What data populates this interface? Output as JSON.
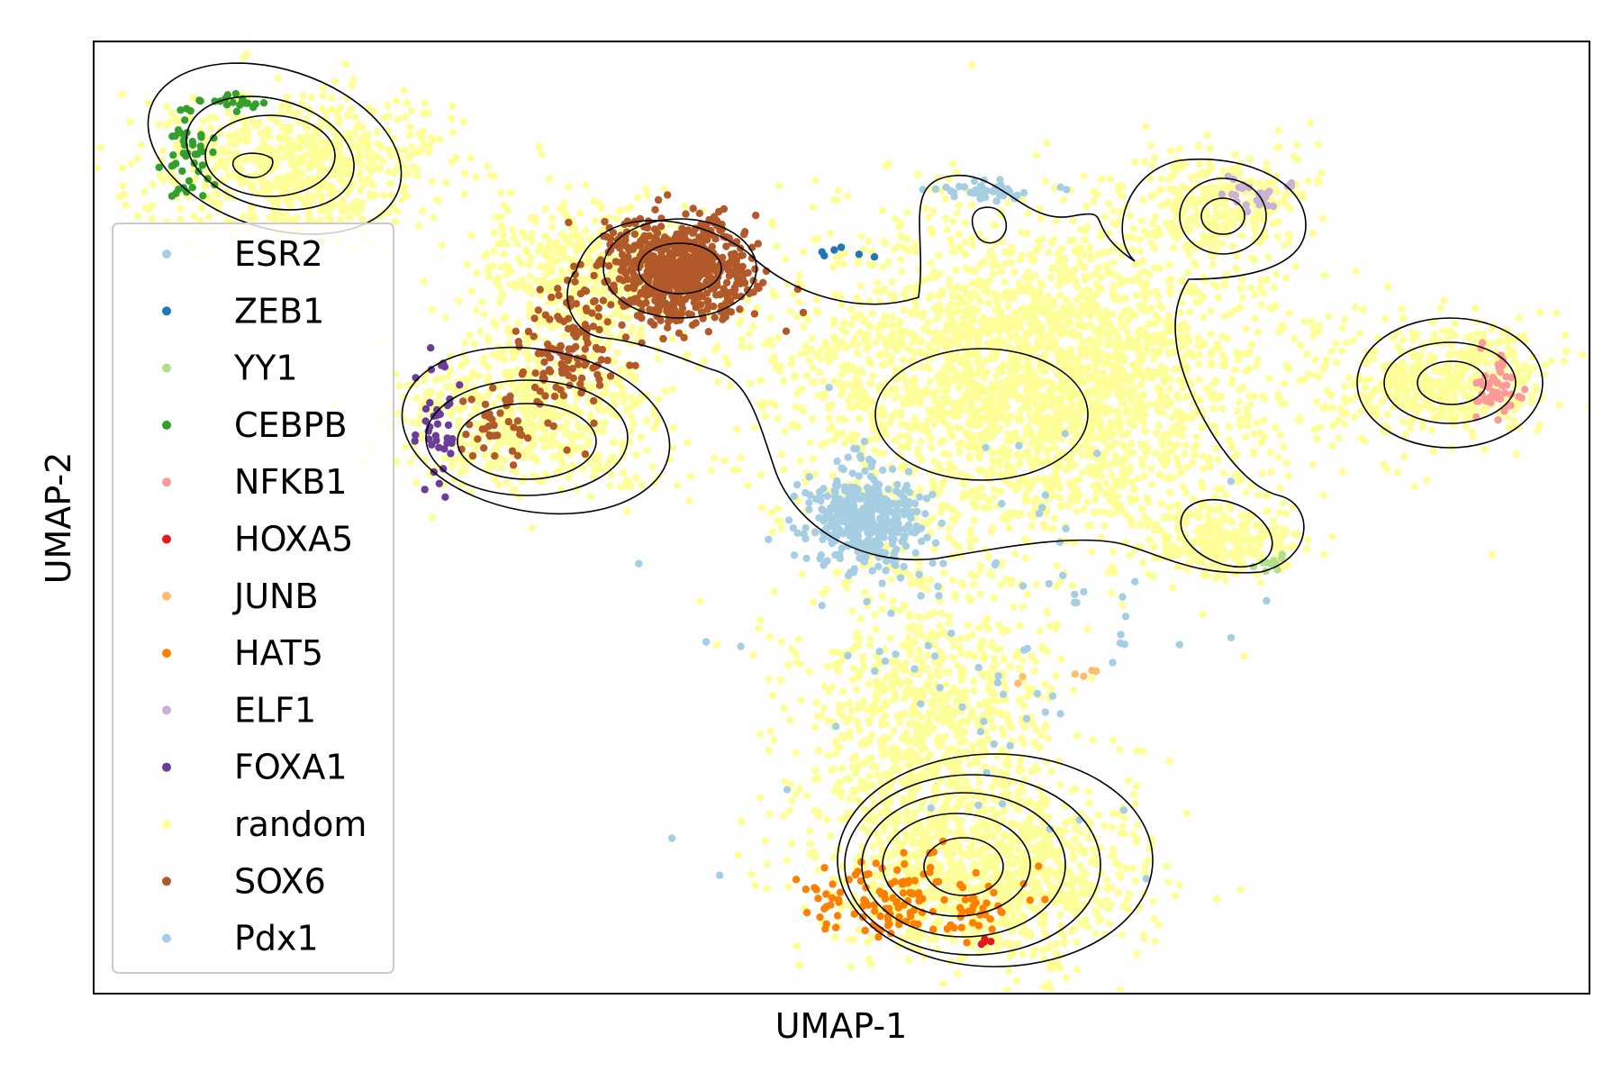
{
  "chart_data": {
    "type": "scatter",
    "xlabel": "UMAP-1",
    "ylabel": "UMAP-2",
    "xticks": "none",
    "yticks": "none",
    "grid": false,
    "legend_position": "left",
    "contours": "density contour lines (black)",
    "series": [
      {
        "name": "ESR2",
        "color": "#a6cee3",
        "clusters": [
          {
            "cx": 1100,
            "cy": 210,
            "rx": 55,
            "ry": 12,
            "n": 40
          }
        ]
      },
      {
        "name": "ZEB1",
        "color": "#1f78b4",
        "clusters": [
          {
            "cx": 930,
            "cy": 280,
            "rx": 40,
            "ry": 8,
            "n": 6
          }
        ]
      },
      {
        "name": "YY1",
        "color": "#b2df8a",
        "clusters": [
          {
            "cx": 1410,
            "cy": 625,
            "rx": 25,
            "ry": 12,
            "n": 10
          }
        ]
      },
      {
        "name": "CEBPB",
        "color": "#33a02c",
        "clusters": [
          {
            "cx": 210,
            "cy": 170,
            "rx": 30,
            "ry": 50,
            "n": 45
          },
          {
            "cx": 260,
            "cy": 115,
            "rx": 40,
            "ry": 10,
            "n": 20
          }
        ]
      },
      {
        "name": "NFKB1",
        "color": "#fb9a99",
        "clusters": [
          {
            "cx": 1660,
            "cy": 430,
            "rx": 30,
            "ry": 40,
            "n": 45
          }
        ]
      },
      {
        "name": "HOXA5",
        "color": "#e31a1c",
        "clusters": [
          {
            "cx": 1100,
            "cy": 1045,
            "rx": 40,
            "ry": 5,
            "n": 4
          }
        ]
      },
      {
        "name": "JUNB",
        "color": "#fdbf6f",
        "clusters": [
          {
            "cx": 1190,
            "cy": 750,
            "rx": 60,
            "ry": 30,
            "n": 6
          }
        ]
      },
      {
        "name": "HAT5",
        "color": "#ff7f00",
        "clusters": [
          {
            "cx": 1000,
            "cy": 1000,
            "rx": 120,
            "ry": 45,
            "n": 140
          }
        ]
      },
      {
        "name": "ELF1",
        "color": "#cab2d6",
        "clusters": [
          {
            "cx": 1390,
            "cy": 215,
            "rx": 45,
            "ry": 20,
            "n": 25
          }
        ]
      },
      {
        "name": "FOXA1",
        "color": "#6a3d9a",
        "clusters": [
          {
            "cx": 485,
            "cy": 470,
            "rx": 25,
            "ry": 70,
            "n": 40
          }
        ]
      },
      {
        "name": "random",
        "color": "#ffff99",
        "clusters": [
          {
            "cx": 1150,
            "cy": 420,
            "rx": 280,
            "ry": 180,
            "n": 2800
          },
          {
            "cx": 1030,
            "cy": 800,
            "rx": 140,
            "ry": 180,
            "n": 1000
          },
          {
            "cx": 1100,
            "cy": 970,
            "rx": 170,
            "ry": 100,
            "n": 1000
          },
          {
            "cx": 330,
            "cy": 185,
            "rx": 160,
            "ry": 80,
            "n": 700
          },
          {
            "cx": 590,
            "cy": 460,
            "rx": 150,
            "ry": 90,
            "n": 600
          },
          {
            "cx": 1610,
            "cy": 420,
            "rx": 120,
            "ry": 60,
            "n": 500
          },
          {
            "cx": 650,
            "cy": 310,
            "rx": 110,
            "ry": 90,
            "n": 500
          },
          {
            "cx": 1360,
            "cy": 230,
            "rx": 100,
            "ry": 60,
            "n": 300
          },
          {
            "cx": 1360,
            "cy": 600,
            "rx": 90,
            "ry": 40,
            "n": 250
          }
        ]
      },
      {
        "name": "SOX6",
        "color": "#b15928",
        "clusters": [
          {
            "cx": 755,
            "cy": 300,
            "rx": 85,
            "ry": 55,
            "n": 700
          },
          {
            "cx": 630,
            "cy": 390,
            "rx": 50,
            "ry": 70,
            "n": 120
          },
          {
            "cx": 560,
            "cy": 470,
            "rx": 50,
            "ry": 40,
            "n": 40
          }
        ]
      },
      {
        "name": "Pdx1",
        "color": "#a6cee3",
        "clusters": [
          {
            "cx": 960,
            "cy": 575,
            "rx": 60,
            "ry": 55,
            "n": 400
          },
          {
            "cx": 1100,
            "cy": 700,
            "rx": 250,
            "ry": 230,
            "n": 90
          }
        ]
      }
    ]
  }
}
